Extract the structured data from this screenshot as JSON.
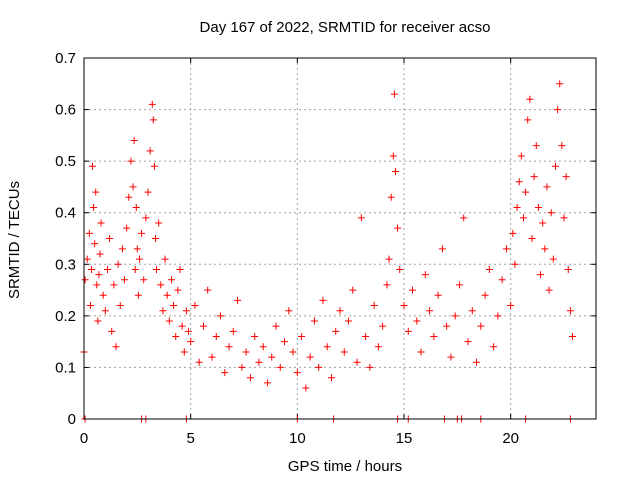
{
  "chart_data": {
    "type": "scatter",
    "title": "Day 167 of 2022, SRMTID for receiver acso",
    "xlabel": "GPS time / hours",
    "ylabel": "SRMTID / TECUs",
    "xlim": [
      0,
      24
    ],
    "ylim": [
      0,
      0.7
    ],
    "x_ticks": [
      0,
      5,
      10,
      15,
      20
    ],
    "x_tick_labels": [
      "0",
      "5",
      "10",
      "15",
      "20"
    ],
    "y_ticks": [
      0,
      0.1,
      0.2,
      0.3,
      0.4,
      0.5,
      0.6,
      0.7
    ],
    "y_tick_labels": [
      "0",
      "0.1",
      "0.2",
      "0.3",
      "0.4",
      "0.5",
      "0.6",
      "0.7"
    ],
    "grid": true,
    "marker": "+",
    "series_color": "#ff0000",
    "series": [
      {
        "name": "SRMTID",
        "x": [
          0.0,
          0.05,
          0.15,
          0.25,
          0.3,
          0.35,
          0.4,
          0.45,
          0.5,
          0.55,
          0.6,
          0.65,
          0.7,
          0.75,
          0.8,
          0.9,
          1.0,
          1.1,
          1.2,
          1.3,
          1.4,
          1.5,
          1.6,
          1.7,
          1.8,
          1.9,
          2.0,
          2.1,
          2.2,
          2.3,
          2.35,
          2.4,
          2.45,
          2.5,
          2.55,
          2.6,
          2.7,
          2.8,
          2.9,
          3.0,
          3.1,
          3.2,
          3.25,
          3.3,
          3.35,
          3.4,
          3.5,
          3.6,
          3.7,
          3.8,
          3.9,
          4.0,
          4.1,
          4.2,
          4.3,
          4.4,
          4.5,
          4.6,
          4.7,
          4.8,
          4.9,
          5.0,
          5.2,
          5.4,
          5.6,
          5.8,
          6.0,
          6.2,
          6.4,
          6.6,
          6.8,
          7.0,
          7.2,
          7.4,
          7.6,
          7.8,
          8.0,
          8.2,
          8.4,
          8.6,
          8.8,
          9.0,
          9.2,
          9.4,
          9.6,
          9.8,
          10.0,
          10.2,
          10.4,
          10.6,
          10.8,
          11.0,
          11.2,
          11.4,
          11.6,
          11.8,
          12.0,
          12.2,
          12.4,
          12.6,
          12.8,
          13.0,
          13.2,
          13.4,
          13.6,
          13.8,
          14.0,
          14.2,
          14.3,
          14.4,
          14.5,
          14.55,
          14.6,
          14.7,
          14.8,
          15.0,
          15.2,
          15.4,
          15.6,
          15.8,
          16.0,
          16.2,
          16.4,
          16.6,
          16.8,
          17.0,
          17.2,
          17.4,
          17.6,
          17.8,
          18.0,
          18.2,
          18.4,
          18.6,
          18.8,
          19.0,
          19.2,
          19.4,
          19.6,
          19.8,
          20.0,
          20.1,
          20.2,
          20.3,
          20.4,
          20.5,
          20.6,
          20.7,
          20.8,
          20.9,
          21.0,
          21.1,
          21.2,
          21.3,
          21.4,
          21.5,
          21.6,
          21.7,
          21.8,
          21.9,
          22.0,
          22.1,
          22.2,
          22.3,
          22.4,
          22.5,
          22.6,
          22.7,
          22.8,
          22.9
        ],
        "y": [
          0.13,
          0.27,
          0.31,
          0.36,
          0.22,
          0.29,
          0.49,
          0.41,
          0.34,
          0.44,
          0.26,
          0.19,
          0.28,
          0.32,
          0.38,
          0.24,
          0.21,
          0.29,
          0.35,
          0.17,
          0.26,
          0.14,
          0.3,
          0.22,
          0.33,
          0.27,
          0.37,
          0.43,
          0.5,
          0.45,
          0.54,
          0.29,
          0.41,
          0.33,
          0.24,
          0.31,
          0.36,
          0.27,
          0.39,
          0.44,
          0.52,
          0.61,
          0.58,
          0.49,
          0.35,
          0.29,
          0.38,
          0.26,
          0.21,
          0.31,
          0.24,
          0.19,
          0.27,
          0.22,
          0.16,
          0.25,
          0.29,
          0.18,
          0.13,
          0.21,
          0.17,
          0.15,
          0.22,
          0.11,
          0.18,
          0.25,
          0.12,
          0.16,
          0.2,
          0.09,
          0.14,
          0.17,
          0.23,
          0.1,
          0.13,
          0.08,
          0.16,
          0.11,
          0.14,
          0.07,
          0.12,
          0.18,
          0.1,
          0.15,
          0.21,
          0.13,
          0.09,
          0.16,
          0.06,
          0.12,
          0.19,
          0.1,
          0.23,
          0.14,
          0.08,
          0.17,
          0.21,
          0.13,
          0.19,
          0.25,
          0.11,
          0.39,
          0.16,
          0.1,
          0.22,
          0.14,
          0.18,
          0.26,
          0.31,
          0.43,
          0.51,
          0.63,
          0.48,
          0.37,
          0.29,
          0.22,
          0.17,
          0.25,
          0.19,
          0.13,
          0.28,
          0.21,
          0.16,
          0.24,
          0.33,
          0.18,
          0.12,
          0.2,
          0.26,
          0.39,
          0.15,
          0.21,
          0.11,
          0.18,
          0.24,
          0.29,
          0.14,
          0.2,
          0.27,
          0.33,
          0.22,
          0.36,
          0.3,
          0.41,
          0.46,
          0.51,
          0.39,
          0.44,
          0.58,
          0.62,
          0.35,
          0.47,
          0.53,
          0.41,
          0.28,
          0.38,
          0.33,
          0.45,
          0.25,
          0.4,
          0.31,
          0.49,
          0.6,
          0.65,
          0.53,
          0.39,
          0.47,
          0.29,
          0.21,
          0.16
        ]
      }
    ],
    "zero_markers_x": [
      0.05,
      2.7,
      2.9,
      4.8,
      10.0,
      11.7,
      14.7,
      15.2,
      16.9,
      17.5,
      17.7,
      18.6,
      20.7,
      22.8
    ]
  }
}
